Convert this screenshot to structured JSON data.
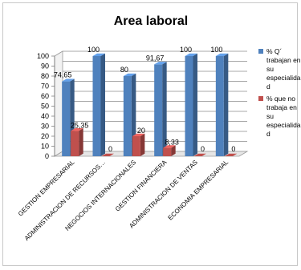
{
  "chart_data": {
    "type": "bar",
    "title": "Area laboral",
    "xlabel": "",
    "ylabel": "",
    "ylim": [
      0,
      100
    ],
    "yticks": [
      "0",
      "10",
      "20",
      "30",
      "40",
      "50",
      "60",
      "70",
      "80",
      "90",
      "100"
    ],
    "grid": true,
    "legend_position": "right",
    "three_d": true,
    "categories": [
      "GESTION EMPRESARIAL",
      "ADMINISTRACION DE RECURSOS…",
      "NEGOCIOS INTERNACIONALES",
      "GESTION FINANCIERA",
      "ADMINISTRACION DE VENTAS",
      "ECONOMIA EMPRESARIAL"
    ],
    "series": [
      {
        "name": "% Q´ trabajan en su especialidad",
        "legend_lines": [
          "% Q´",
          "trabajan en",
          "su",
          "especialida",
          "d"
        ],
        "color": "#4f81bd",
        "values": [
          74.65,
          100,
          80,
          91.67,
          100,
          100
        ],
        "labels": [
          "74,65",
          "100",
          "80",
          "91,67",
          "100",
          "100"
        ]
      },
      {
        "name": "% que no trabaja en su especialidad",
        "legend_lines": [
          "% que no",
          "trabaja en",
          "su",
          "especialida",
          "d"
        ],
        "color": "#c0504d",
        "values": [
          25.35,
          0,
          20,
          8.33,
          0,
          0
        ],
        "labels": [
          "25,35",
          "0",
          "20",
          "8,33",
          "0",
          "0"
        ]
      }
    ]
  }
}
